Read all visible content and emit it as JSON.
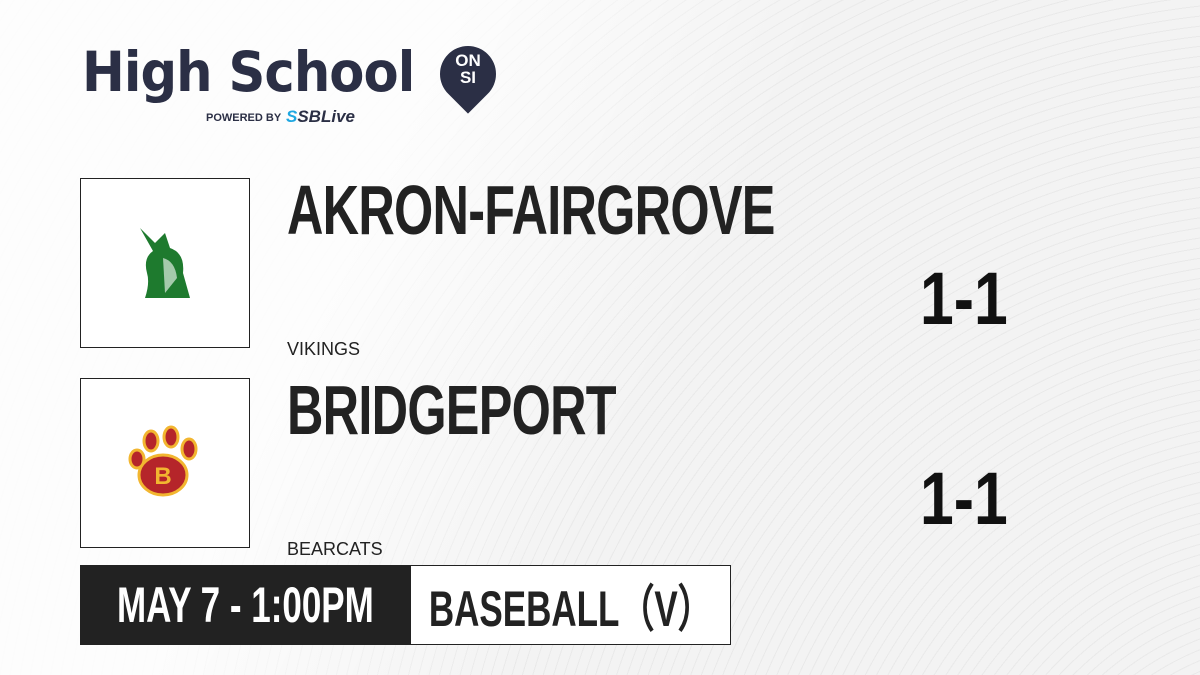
{
  "brand": {
    "title": "High School",
    "badge_line1": "ON",
    "badge_line2": "SI",
    "powered_by": "POWERED BY",
    "partner": "SBLive",
    "accent": "#2b2f45",
    "partner_color": "#1ea7e1"
  },
  "teams": [
    {
      "name": "AKRON-FAIRGROVE",
      "mascot": "VIKINGS",
      "record": "1-1",
      "logo_icon": "viking-head-icon",
      "logo_color": "#1e7a2e"
    },
    {
      "name": "BRIDGEPORT",
      "mascot": "BEARCATS",
      "record": "1-1",
      "logo_icon": "bear-paw-icon",
      "logo_color": "#b5252a"
    }
  ],
  "game": {
    "datetime": "MAY 7 - 1:00PM",
    "sport": "BASEBALL（V）"
  }
}
